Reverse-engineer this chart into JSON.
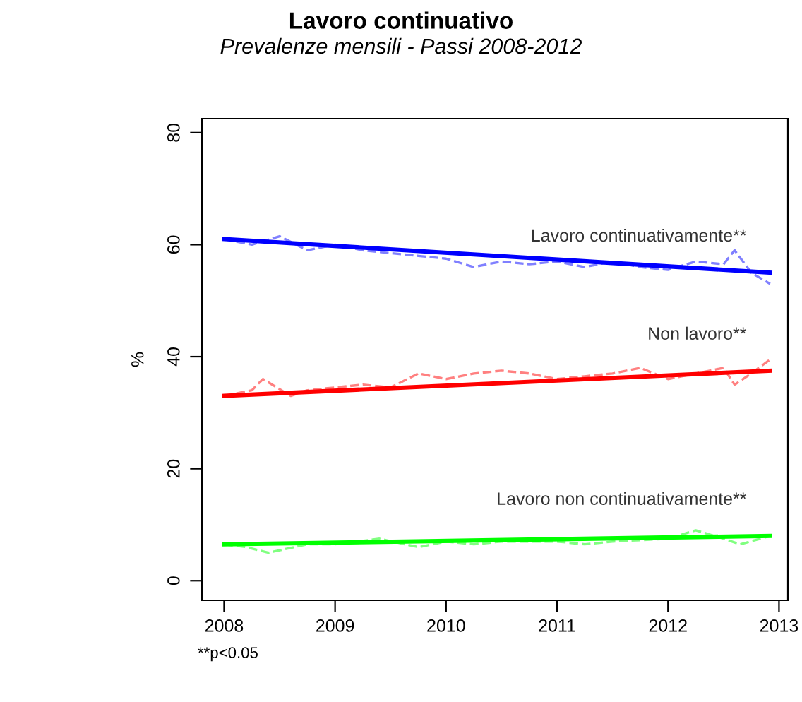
{
  "chart_data": {
    "type": "line",
    "title": "Lavoro continuativo",
    "subtitle": "Prevalenze mensili - Passi 2008-2012",
    "ylabel": "%",
    "xlim": [
      2007.8,
      2013.08
    ],
    "xticks": [
      2008,
      2009,
      2010,
      2011,
      2012,
      2013
    ],
    "ylim": [
      -3.5,
      82.5
    ],
    "yticks": [
      0,
      20,
      40,
      60,
      80
    ],
    "grid": false,
    "legend": false,
    "marker": "none",
    "annotations": [
      "**p<0.05"
    ],
    "series": [
      {
        "color": "#8080ff",
        "line_style": "dashed",
        "x": [
          2008,
          2008.25,
          2008.5,
          2008.75,
          2009,
          2009.25,
          2009.5,
          2009.75,
          2010,
          2010.25,
          2010.5,
          2010.75,
          2011,
          2011.25,
          2011.5,
          2011.75,
          2012,
          2012.25,
          2012.5,
          2012.6,
          2012.75,
          2012.92
        ],
        "values": [
          61,
          60,
          61.5,
          59,
          60,
          59,
          58.5,
          58,
          57.5,
          56,
          57,
          56.5,
          57,
          56,
          57,
          56,
          55.5,
          57,
          56.5,
          59,
          55,
          53
        ]
      },
      {
        "name": "Lavoro continuativamente**",
        "color": "#0000ff",
        "line_style": "solid",
        "x": [
          2008,
          2012.92
        ],
        "values": [
          61,
          55
        ]
      },
      {
        "color": "#ff8080",
        "line_style": "dashed",
        "x": [
          2008,
          2008.25,
          2008.35,
          2008.6,
          2008.75,
          2009,
          2009.25,
          2009.5,
          2009.75,
          2010,
          2010.25,
          2010.5,
          2010.75,
          2011,
          2011.25,
          2011.5,
          2011.75,
          2012,
          2012.25,
          2012.5,
          2012.6,
          2012.75,
          2012.92
        ],
        "values": [
          33,
          34,
          36,
          33,
          34,
          34.5,
          35,
          34.5,
          37,
          36,
          37,
          37.5,
          37,
          36,
          36.5,
          37,
          38,
          36,
          37,
          38,
          35,
          37,
          39.5
        ]
      },
      {
        "name": "Non lavoro**",
        "color": "#ff0000",
        "line_style": "solid",
        "x": [
          2008,
          2012.92
        ],
        "values": [
          33,
          37.5
        ]
      },
      {
        "color": "#80ff80",
        "line_style": "dashed",
        "x": [
          2008,
          2008.2,
          2008.4,
          2008.75,
          2009,
          2009.4,
          2009.75,
          2010,
          2010.25,
          2010.5,
          2011,
          2011.25,
          2011.5,
          2012,
          2012.25,
          2012.5,
          2012.65,
          2012.92
        ],
        "values": [
          6.5,
          6,
          5,
          6.5,
          6.5,
          7.5,
          6,
          7,
          6.5,
          7,
          7,
          6.5,
          7,
          7.5,
          9,
          7.5,
          6.5,
          8
        ]
      },
      {
        "name": "Lavoro non continuativamente**",
        "color": "#00ff00",
        "line_style": "solid",
        "x": [
          2008,
          2012.92
        ],
        "values": [
          6.5,
          8
        ]
      }
    ]
  }
}
